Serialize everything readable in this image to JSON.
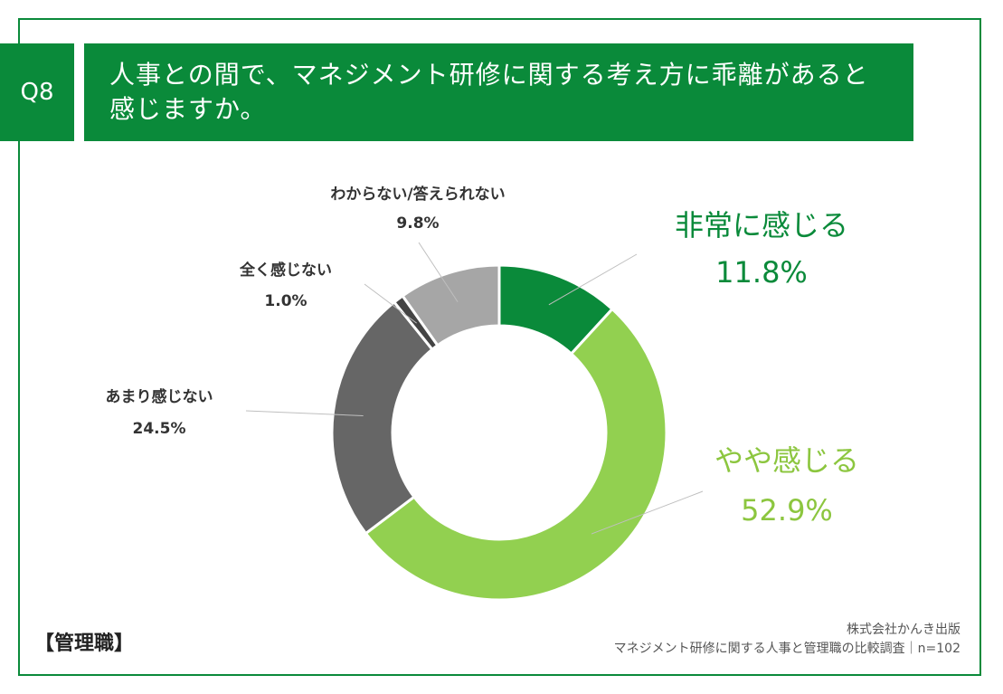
{
  "header": {
    "question_label": "Q8",
    "title_line1": "人事との間で、マネジメント研修に関する考え方に乖離があると",
    "title_line2": "感じますか。"
  },
  "colors": {
    "brand": "#0a8a3a",
    "label_strong": "#0a8a3a",
    "label_light": "#8cc63f"
  },
  "chart_data": {
    "type": "pie",
    "donut": true,
    "slices": [
      {
        "label": "非常に感じる",
        "value": 11.8,
        "display": "11.8%",
        "color": "#0a8a3a"
      },
      {
        "label": "やや感じる",
        "value": 52.9,
        "display": "52.9%",
        "color": "#92d050"
      },
      {
        "label": "あまり感じない",
        "value": 24.5,
        "display": "24.5%",
        "color": "#666666"
      },
      {
        "label": "全く感じない",
        "value": 1.0,
        "display": "1.0%",
        "color": "#444444"
      },
      {
        "label": "わからない/答えられない",
        "value": 9.8,
        "display": "9.8%",
        "color": "#a6a6a6"
      }
    ]
  },
  "footer": {
    "segment_label": "【管理職】",
    "company": "株式会社かんき出版",
    "survey": "マネジメント研修に関する人事と管理職の比較調査｜n=102"
  }
}
